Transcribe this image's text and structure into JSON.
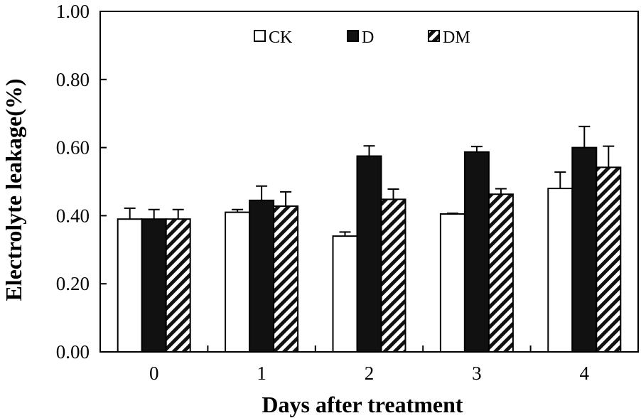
{
  "chart_data": {
    "type": "bar",
    "title": "",
    "xlabel": "Days after treatment",
    "ylabel": "Electrolyte leakage(%)",
    "categories": [
      "0",
      "1",
      "2",
      "3",
      "4"
    ],
    "ylim": [
      0,
      1.0
    ],
    "yticks": [
      "0.00",
      "0.20",
      "0.40",
      "0.60",
      "0.80",
      "1.00"
    ],
    "grid": false,
    "legend_position": "top-center",
    "series": [
      {
        "name": "CK",
        "pattern": "open",
        "values": [
          0.39,
          0.41,
          0.34,
          0.405,
          0.48
        ],
        "errors": [
          0.032,
          0.008,
          0.012,
          0.002,
          0.048
        ]
      },
      {
        "name": "D",
        "pattern": "solid",
        "values": [
          0.39,
          0.445,
          0.575,
          0.587,
          0.6
        ],
        "errors": [
          0.028,
          0.042,
          0.03,
          0.016,
          0.062
        ]
      },
      {
        "name": "DM",
        "pattern": "hatched",
        "values": [
          0.39,
          0.428,
          0.448,
          0.463,
          0.542
        ],
        "errors": [
          0.028,
          0.042,
          0.03,
          0.016,
          0.062
        ]
      }
    ],
    "colors": {
      "bar_stroke": "#000000",
      "solid_fill": "#111111",
      "open_fill": "#ffffff"
    }
  }
}
